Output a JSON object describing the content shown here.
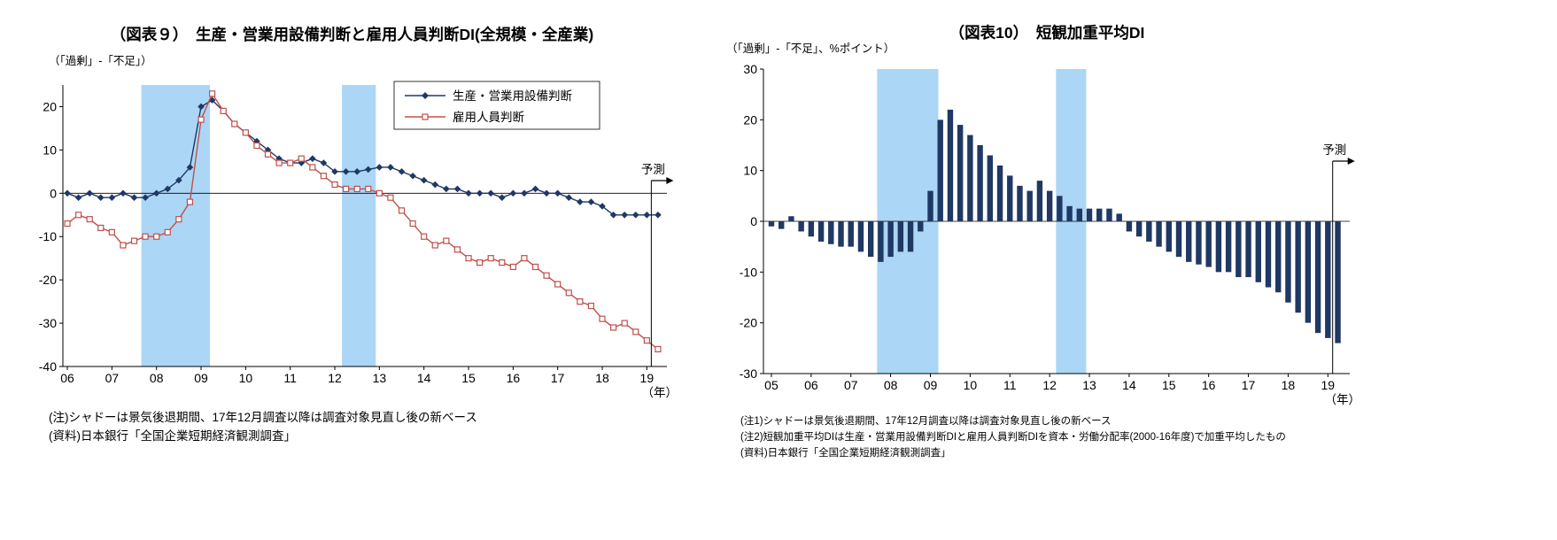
{
  "chart_data": [
    {
      "type": "line",
      "title": "（図表９）　生産・営業用設備判断と雇用人員判断DI(全規模・全産業)",
      "unit_label": "（「過剰」-「不足」）",
      "forecast_label": "予測",
      "year_label": "（年）",
      "notes": [
        "(注)シャドーは景気後退期間、17年12月調査以降は調査対象見直し後の新ベース",
        "(資料)日本銀行「全国企業短期経済観測調査」"
      ],
      "x_start": 2006.0,
      "x_step": 0.25,
      "xlim": [
        2005.9,
        2019.45
      ],
      "ylim": [
        -40,
        25
      ],
      "yticks": [
        -40,
        -30,
        -20,
        -10,
        0,
        10,
        20
      ],
      "x_tick_years": [
        2006,
        2007,
        2008,
        2009,
        2010,
        2011,
        2012,
        2013,
        2014,
        2015,
        2016,
        2017,
        2018,
        2019
      ],
      "x_tick_labels": [
        "06",
        "07",
        "08",
        "09",
        "10",
        "11",
        "12",
        "13",
        "14",
        "15",
        "16",
        "17",
        "18",
        "19"
      ],
      "shaded_regions": [
        [
          2007.66,
          2009.2
        ],
        [
          2012.16,
          2012.92
        ]
      ],
      "shade_color": "#ACD6F5",
      "forecast_x": 2019.1,
      "series": [
        {
          "name": "生産・営業用設備判断",
          "color": "#1F3864",
          "marker": "diamond",
          "values": [
            0,
            -1,
            0,
            -1,
            -1,
            0,
            -1,
            -1,
            0,
            1,
            3,
            6,
            20,
            21.5,
            19,
            16,
            14,
            12,
            10,
            8,
            7,
            7,
            8,
            7,
            5,
            5,
            5,
            5.5,
            6,
            6,
            5,
            4,
            3,
            2,
            1,
            1,
            0,
            0,
            0,
            -1,
            0,
            0,
            1,
            0,
            0,
            -1,
            -2,
            -2,
            -3,
            -5,
            -5,
            -5,
            -5,
            -5
          ]
        },
        {
          "name": "雇用人員判断",
          "color": "#C0504D",
          "marker": "open-square",
          "values": [
            -7,
            -5,
            -6,
            -8,
            -9,
            -12,
            -11,
            -10,
            -10,
            -9,
            -6,
            -2,
            17,
            23,
            19,
            16,
            14,
            11,
            9,
            7,
            7,
            8,
            6,
            4,
            2,
            1,
            1,
            1,
            0,
            -1,
            -4,
            -7,
            -10,
            -12,
            -11,
            -13,
            -15,
            -16,
            -15,
            -16,
            -17,
            -15,
            -17,
            -19,
            -21,
            -23,
            -25,
            -26,
            -29,
            -31,
            -30,
            -32,
            -34,
            -36
          ]
        }
      ]
    },
    {
      "type": "bar",
      "title": "（図表10）　短観加重平均DI",
      "unit_label": "（「過剰」-「不足」、%ポイント）",
      "forecast_label": "予測",
      "year_label": "（年）",
      "notes": [
        "(注1)シャドーは景気後退期間、17年12月調査以降は調査対象見直し後の新ベース",
        "(注2)短観加重平均DIは生産・営業用設備判断DIと雇用人員判断DIを資本・労働分配率(2000-16年度)で加重平均したもの",
        "(資料)日本銀行「全国企業短期経済観測調査」"
      ],
      "x_start": 2005.0,
      "x_step": 0.25,
      "xlim": [
        2004.8,
        2019.55
      ],
      "ylim": [
        -30,
        30
      ],
      "yticks": [
        -30,
        -20,
        -10,
        0,
        10,
        20,
        30
      ],
      "x_tick_years": [
        2005,
        2006,
        2007,
        2008,
        2009,
        2010,
        2011,
        2012,
        2013,
        2014,
        2015,
        2016,
        2017,
        2018,
        2019
      ],
      "x_tick_labels": [
        "05",
        "06",
        "07",
        "08",
        "09",
        "10",
        "11",
        "12",
        "13",
        "14",
        "15",
        "16",
        "17",
        "18",
        "19"
      ],
      "shaded_regions": [
        [
          2007.66,
          2009.2
        ],
        [
          2012.16,
          2012.92
        ]
      ],
      "shade_color": "#ACD6F5",
      "bar_color": "#1F3864",
      "forecast_x": 2019.12,
      "values": [
        -1,
        -1.5,
        1,
        -2,
        -3,
        -4,
        -4.5,
        -5,
        -5,
        -6,
        -7,
        -8,
        -7,
        -6,
        -6,
        -2,
        6,
        20,
        22,
        19,
        17,
        15,
        13,
        11,
        9,
        7,
        6,
        8,
        6,
        5,
        3,
        2.5,
        2.5,
        2.5,
        2.5,
        1.5,
        -2,
        -3,
        -4,
        -5,
        -6,
        -7,
        -8,
        -8.5,
        -9,
        -10,
        -10,
        -11,
        -11,
        -12,
        -13,
        -14,
        -16,
        -18,
        -20,
        -22,
        -23,
        -24
      ]
    }
  ]
}
